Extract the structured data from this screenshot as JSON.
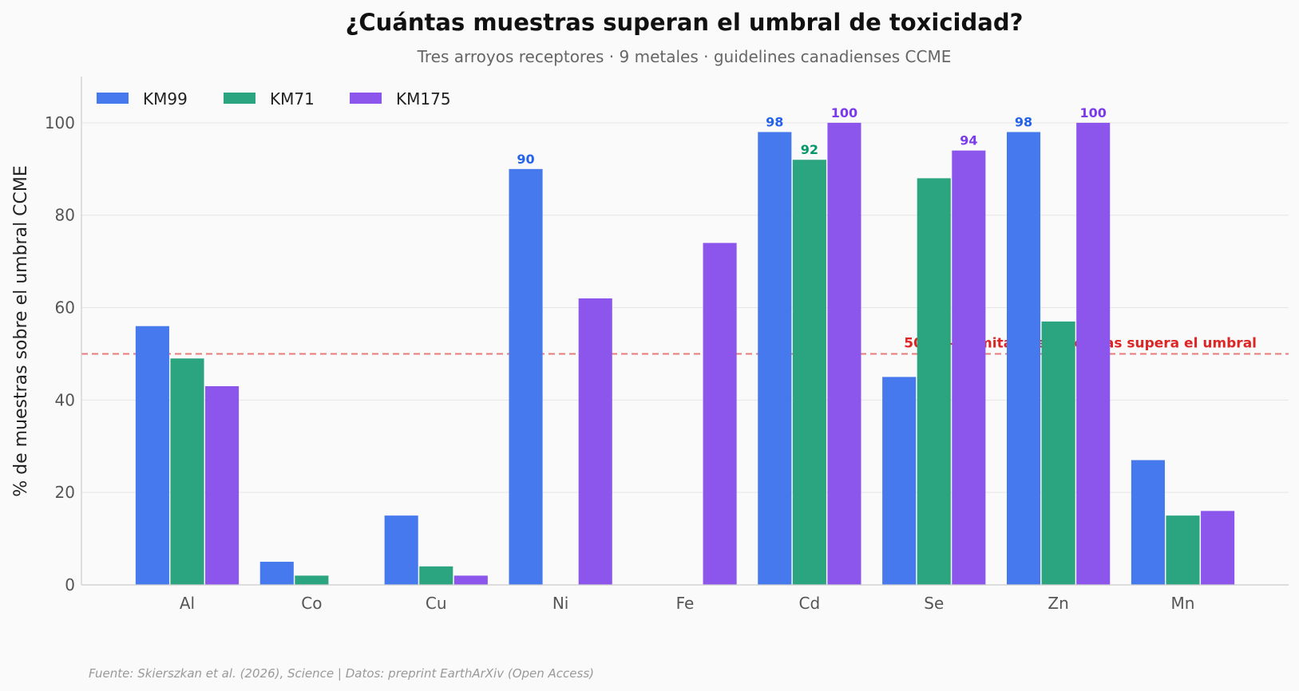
{
  "chart_data": {
    "type": "bar",
    "title": "¿Cuántas muestras superan el umbral de toxicidad?",
    "subtitle": "Tres arroyos receptores · 9 metales · guidelines canadienses CCME",
    "xlabel": "",
    "ylabel": "% de muestras sobre el umbral CCME",
    "ylim": [
      0,
      110
    ],
    "yticks": [
      0,
      20,
      40,
      60,
      80,
      100
    ],
    "grid": true,
    "legend_position": "top-left",
    "categories": [
      "Al",
      "Co",
      "Cu",
      "Ni",
      "Fe",
      "Cd",
      "Se",
      "Zn",
      "Mn"
    ],
    "series": [
      {
        "name": "KM99",
        "color": "#4679ED",
        "label_color": "#2563EB",
        "values": [
          56,
          5,
          15,
          90,
          0,
          98,
          45,
          98,
          27
        ]
      },
      {
        "name": "KM71",
        "color": "#2BA580",
        "label_color": "#059669",
        "values": [
          49,
          2,
          4,
          0,
          0,
          92,
          88,
          57,
          15
        ]
      },
      {
        "name": "KM175",
        "color": "#8C56ED",
        "label_color": "#7C3AED",
        "values": [
          43,
          0,
          2,
          62,
          74,
          100,
          94,
          100,
          16
        ]
      }
    ],
    "data_labels": [
      {
        "series": 0,
        "category": "Ni",
        "text": "90"
      },
      {
        "series": 0,
        "category": "Cd",
        "text": "98"
      },
      {
        "series": 1,
        "category": "Cd",
        "text": "92"
      },
      {
        "series": 2,
        "category": "Cd",
        "text": "100"
      },
      {
        "series": 2,
        "category": "Se",
        "text": "94"
      },
      {
        "series": 0,
        "category": "Zn",
        "text": "98"
      },
      {
        "series": 2,
        "category": "Zn",
        "text": "100"
      }
    ],
    "reference_line": {
      "value": 50,
      "label": "50% — la mitad de muestras supera el umbral",
      "color": "#DC2626"
    }
  },
  "source_note": "Fuente: Skierszkan et al. (2026), Science | Datos: preprint EarthArXiv (Open Access)"
}
